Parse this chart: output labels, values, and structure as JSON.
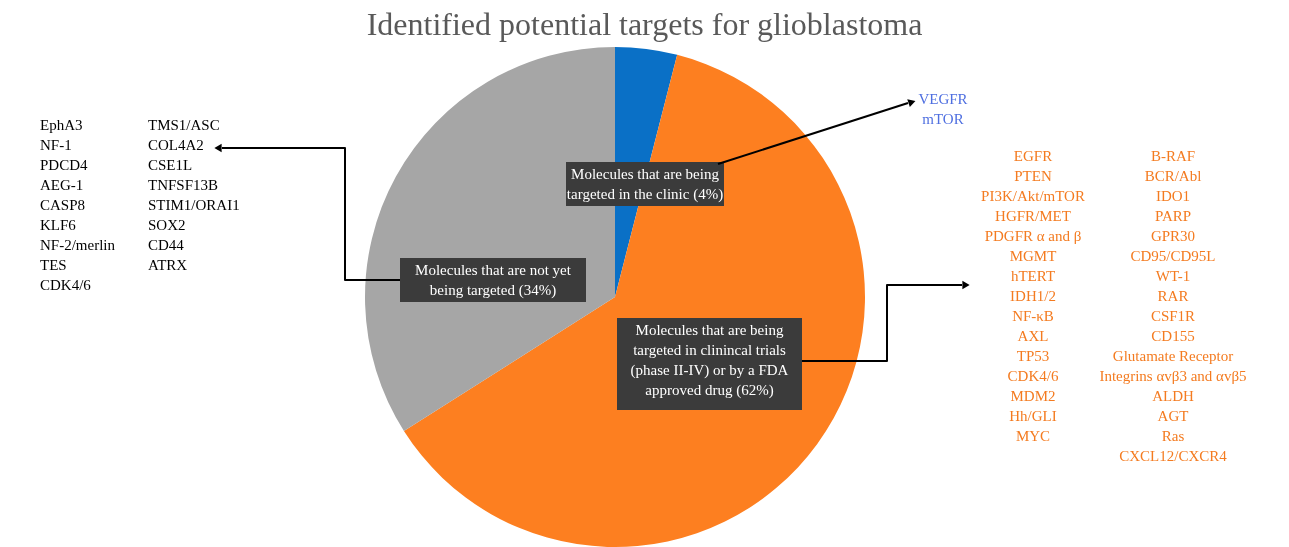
{
  "chart_data": {
    "type": "pie",
    "title": "Identified potential targets for glioblastoma",
    "categories": [
      "Molecules that are being\ntargeted in the clinic (4%)",
      "Molecules that are being\ntargeted in clinincal trials\n(phase II-IV) or by a FDA\napproved drug (62%)",
      "Molecules that are not yet\nbeing targeted (34%)"
    ],
    "values": [
      4,
      62,
      34
    ],
    "colors": [
      "#0a70c6",
      "#fd7f20",
      "#a6a6a6"
    ],
    "annotations": [
      "VEGFR\nmTOR",
      "EphA3\nNF-1\nPDCD4\nAEG-1\nCASP8\nKLF6\nNF-2/merlin\nTES\nCDK4/6",
      "TMS1/ASC\nCOL4A2\nCSE1L\nTNFSF13B\nSTIM1/ORAI1\nSOX2\nCD44\nATRX",
      "EGFR\nPTEN\nPI3K/Akt/mTOR\nHGFR/MET\nPDGFR α and β\nMGMT\nhTERT\nIDH1/2\nNF-κB\nAXL\nTP53\nCDK4/6\nMDM2\nHh/GLI\nMYC",
      "B-RAF\nBCR/Abl\nIDO1\nPARP\nGPR30\nCD95/CD95L\nWT-1\nRAR\nCSF1R\nCD155\nGlutamate Receptor\nIntegrins αvβ3 and αvβ5\nALDH\nAGT\nRas\nCXCL12/CXCR4"
    ]
  }
}
